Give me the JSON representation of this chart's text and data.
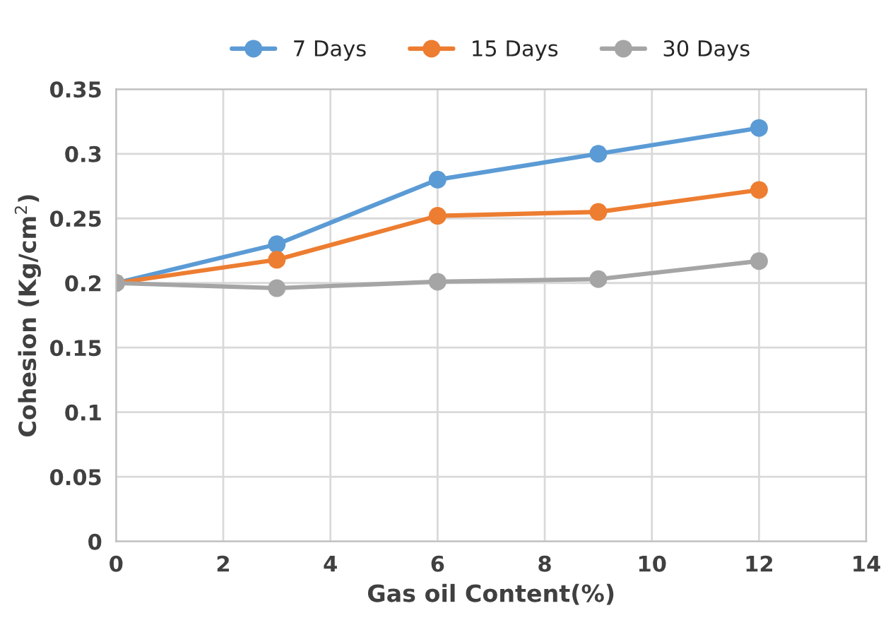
{
  "chart_data": {
    "type": "line",
    "xlabel": "Gas oil Content(%)",
    "ylabel": "Cohesion (Kg/cm$^{2}$)",
    "x": [
      0,
      3,
      6,
      9,
      12
    ],
    "series": [
      {
        "name": "7 Days",
        "color": "#5b9bd5",
        "values": [
          0.2,
          0.23,
          0.28,
          0.3,
          0.32
        ]
      },
      {
        "name": "15 Days",
        "color": "#ed7d31",
        "values": [
          0.2,
          0.218,
          0.252,
          0.255,
          0.272
        ]
      },
      {
        "name": "30 Days",
        "color": "#a5a5a5",
        "values": [
          0.2,
          0.196,
          0.201,
          0.203,
          0.217
        ]
      }
    ],
    "xlim": [
      0,
      14
    ],
    "xticks": [
      0,
      2,
      4,
      6,
      8,
      10,
      12,
      14
    ],
    "ylim": [
      0,
      0.35
    ],
    "yticks": [
      0,
      0.05,
      0.1,
      0.15,
      0.2,
      0.25,
      0.3,
      0.35
    ],
    "grid": true,
    "legend": "top",
    "marker": "circle",
    "line_style": "solid"
  }
}
